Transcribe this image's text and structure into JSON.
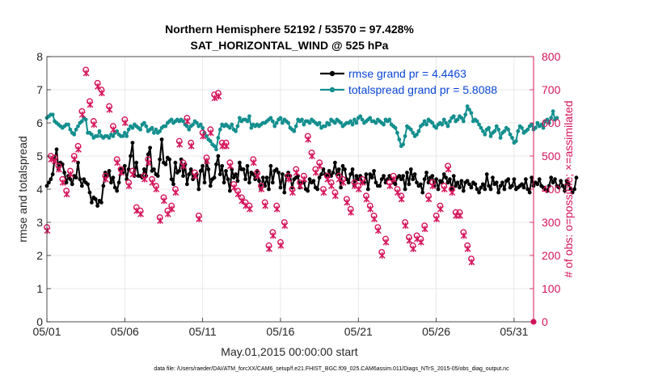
{
  "chart_data": {
    "type": "line",
    "title": "Northern Hemisphere 52192 / 53570 = 97.428%",
    "subtitle": "SAT_HORIZONTAL_WIND @ 525 hPa",
    "xlabel": "May.01,2015 00:00:00 start",
    "ylabel": "rmse and totalspread",
    "y2label": "# of obs: o=possible; ×=assimilated",
    "footnote": "data file: /Users/raeder/DAI/ATM_forcXX/CAM6_setup/f.e21.FHIST_BGC.f09_025.CAM6assim.011/Diags_NTrS_2015-05/obs_diag_output.nc",
    "xlim": [
      0,
      31.25
    ],
    "ylim": [
      0,
      8
    ],
    "y2lim": [
      0,
      800
    ],
    "xticks": [
      0,
      5,
      10,
      15,
      20,
      25,
      30
    ],
    "xticklabels": [
      "05/01",
      "05/06",
      "05/11",
      "05/16",
      "05/21",
      "05/26",
      "05/31"
    ],
    "yticks": [
      0,
      1,
      2,
      3,
      4,
      5,
      6,
      7,
      8
    ],
    "yticklabels": [
      "0",
      "1",
      "2",
      "3",
      "4",
      "5",
      "6",
      "7",
      "8"
    ],
    "y2ticks": [
      0,
      100,
      200,
      300,
      400,
      500,
      600,
      700,
      800
    ],
    "y2ticklabels": [
      "0",
      "100",
      "200",
      "300",
      "400",
      "500",
      "600",
      "700",
      "800"
    ],
    "grid": true,
    "legend_position": "top-right",
    "colors": {
      "rmse": "#000000",
      "spread": "#138f8e",
      "obs": "#d4145a",
      "legend_text": "#0c47d6"
    },
    "series": [
      {
        "name": "rmse grand pr = 4.4463",
        "color": "#000000",
        "values": [
          4.1,
          4.2,
          4.3,
          4.45,
          4.9,
          5.2,
          4.6,
          4.8,
          4.75,
          4.5,
          4.2,
          4.4,
          4.3,
          4.15,
          4.4,
          4.35,
          4.8,
          4.3,
          4.1,
          4.3,
          4.2,
          4.15,
          3.9,
          3.6,
          3.75,
          3.7,
          3.5,
          3.65,
          3.6,
          4.1,
          4.5,
          4.4,
          4.55,
          4.2,
          4.35,
          4.05,
          3.95,
          4.2,
          4.6,
          4.5,
          4.7,
          4.3,
          4.6,
          5.0,
          5.4,
          4.4,
          4.8,
          4.4,
          4.4,
          4.35,
          4.6,
          4.4,
          5.05,
          5.25,
          4.55,
          4.6,
          4.45,
          4.4,
          4.9,
          5.5,
          4.8,
          4.75,
          4.95,
          4.9,
          4.3,
          4.15,
          4.8,
          4.5,
          4.55,
          4.9,
          4.4,
          4.75,
          4.15,
          4.45,
          4.6,
          4.3,
          4.4,
          4.45,
          4.0,
          4.55,
          4.7,
          4.2,
          4.85,
          4.6,
          4.1,
          4.3,
          4.35,
          4.75,
          5.0,
          4.45,
          4.7,
          4.2,
          4.55,
          4.3,
          3.95,
          4.6,
          4.35,
          4.45,
          4.25,
          4.8,
          4.6,
          4.6,
          4.3,
          4.7,
          4.2,
          4.5,
          4.45,
          4.3,
          4.55,
          4.25,
          4.0,
          4.35,
          4.1,
          4.35,
          4.0,
          4.7,
          4.2,
          4.55,
          4.6,
          4.5,
          4.05,
          4.45,
          3.9,
          4.4,
          4.5,
          4.4,
          4.05,
          4.3,
          4.35,
          4.4,
          4.05,
          4.2,
          4.2,
          4.0,
          3.95,
          4.3,
          4.2,
          4.25,
          4.05,
          4.0,
          4.35,
          4.45,
          4.6,
          4.45,
          4.4,
          4.55,
          4.4,
          4.5,
          4.8,
          4.45,
          4.6,
          4.05,
          4.7,
          4.6,
          4.3,
          4.2,
          4.45,
          4.6,
          4.1,
          4.4,
          4.3,
          4.4,
          4.2,
          4.2,
          4.45,
          4.0,
          4.45,
          4.35,
          4.55,
          4.2,
          4.1,
          4.1,
          4.3,
          4.4,
          4.2,
          4.3,
          4.4,
          4.3,
          4.2,
          4.15,
          4.35,
          4.4,
          4.3,
          4.4,
          4.0,
          4.5,
          4.15,
          4.6,
          4.3,
          4.45,
          4.2,
          4.1,
          4.15,
          3.9,
          4.3,
          4.5,
          4.2,
          4.35,
          4.4,
          4.1,
          4.3,
          4.0,
          4.25,
          4.2,
          4.45,
          4.35,
          4.2,
          4.3,
          4.0,
          4.4,
          4.1,
          4.2,
          4.05,
          4.25,
          3.95,
          4.2,
          4.25,
          4.15,
          4.05,
          4.2,
          4.15,
          4.0,
          3.9,
          4.05,
          4.15,
          4.0,
          4.45,
          4.1,
          4.0,
          4.35,
          4.15,
          4.2,
          3.9,
          4.1,
          4.2,
          4.0,
          4.25,
          4.3,
          4.05,
          4.1,
          4.3,
          4.0,
          4.05,
          4.1,
          4.15,
          4.05,
          4.3,
          4.0,
          3.9,
          4.35,
          4.1,
          4.2,
          4.15,
          4.3,
          4.1,
          4.05,
          4.0,
          3.95,
          4.1,
          4.35,
          4.2,
          4.3,
          4.1,
          4.05,
          4.25,
          4.1,
          3.95,
          4.25,
          4.15,
          4.0,
          3.9,
          4.0,
          4.35
        ]
      },
      {
        "name": "totalspread grand pr = 5.8088",
        "color": "#138f8e",
        "values": [
          6.15,
          6.2,
          6.25,
          6.25,
          6.05,
          6.0,
          5.95,
          5.9,
          5.85,
          5.9,
          5.95,
          5.95,
          5.8,
          5.7,
          5.65,
          5.8,
          5.9,
          6.0,
          6.05,
          6.15,
          6.1,
          5.7,
          5.7,
          5.65,
          5.55,
          5.6,
          5.6,
          5.75,
          5.6,
          5.55,
          5.6,
          5.6,
          5.55,
          5.65,
          5.6,
          5.7,
          5.75,
          5.65,
          5.6,
          5.6,
          5.7,
          5.6,
          5.8,
          5.9,
          5.85,
          5.95,
          5.9,
          5.85,
          5.8,
          5.95,
          6.0,
          5.9,
          5.75,
          5.8,
          5.85,
          5.7,
          5.8,
          5.7,
          5.75,
          5.85,
          5.9,
          5.9,
          6.0,
          6.05,
          6.1,
          6.0,
          6.05,
          6.1,
          6.05,
          6.1,
          6.05,
          5.95,
          5.9,
          5.8,
          5.9,
          5.95,
          6.05,
          6.0,
          5.9,
          5.95,
          5.85,
          5.7,
          5.6,
          5.5,
          5.45,
          5.35,
          5.3,
          5.2,
          5.55,
          5.8,
          5.95,
          5.9,
          5.95,
          5.9,
          5.85,
          5.95,
          5.8,
          5.75,
          5.9,
          6.15,
          6.05,
          6.1,
          6.1,
          6.05,
          6.2,
          5.85,
          5.95,
          5.9,
          5.95,
          5.9,
          5.95,
          6.0,
          6.0,
          6.05,
          6.1,
          6.15,
          6.05,
          5.9,
          6.0,
          6.1,
          6.15,
          6.0,
          6.1,
          6.05,
          6.0,
          5.85,
          5.8,
          5.75,
          5.9,
          6.1,
          6.05,
          6.1,
          5.95,
          6.05,
          6.05,
          6.0,
          6.1,
          6.05,
          6.0,
          5.95,
          6.0,
          5.85,
          5.9,
          5.9,
          6.0,
          5.95,
          6.1,
          6.05,
          6.0,
          6.1,
          6.05,
          6.0,
          5.9,
          5.95,
          6.0,
          6.0,
          6.05,
          5.95,
          6.1,
          6.0,
          6.15,
          6.2,
          6.1,
          6.0,
          6.05,
          6.1,
          6.15,
          6.05,
          6.05,
          6.0,
          6.1,
          6.05,
          6.0,
          5.95,
          6.1,
          6.05,
          6.1,
          5.95,
          5.9,
          5.85,
          5.7,
          5.5,
          5.3,
          5.35,
          5.6,
          5.9,
          5.85,
          5.8,
          5.7,
          5.6,
          5.65,
          5.75,
          5.9,
          5.95,
          6.05,
          5.95,
          6.1,
          6.05,
          6.0,
          5.9,
          5.85,
          5.95,
          6.0,
          5.95,
          6.1,
          6.0,
          5.9,
          6.05,
          6.15,
          6.2,
          6.05,
          6.1,
          6.2,
          6.15,
          6.05,
          6.25,
          6.5,
          6.4,
          6.3,
          6.05,
          6.1,
          6.05,
          5.95,
          5.85,
          5.75,
          5.65,
          5.8,
          5.85,
          5.6,
          5.7,
          5.75,
          5.9,
          5.8,
          5.55,
          5.7,
          5.75,
          5.85,
          5.8,
          5.65,
          5.55,
          5.4,
          5.45,
          5.75,
          5.9,
          5.85,
          5.7,
          5.75,
          5.8,
          5.9,
          5.95,
          5.8,
          5.85,
          6.0,
          5.9,
          5.95,
          5.85,
          6.05,
          6.1,
          6.0,
          6.15,
          6.35,
          6.1,
          6.15
        ]
      },
      {
        "name": "# of obs possible",
        "axis": "right",
        "color": "#d4145a",
        "values": [
          285,
          340,
          500,
          520,
          495,
          510,
          470,
          440,
          430,
          310,
          395,
          385,
          455,
          530,
          500,
          550,
          530,
          600,
          635,
          670,
          760,
          640,
          665,
          550,
          605,
          715,
          720,
          710,
          700,
          575,
          440,
          550,
          650,
          615,
          590,
          480,
          490,
          510,
          460,
          475,
          610,
          480,
          420,
          500,
          455,
          405,
          345,
          380,
          335,
          470,
          440,
          445,
          490,
          400,
          430,
          460,
          410,
          380,
          315,
          280,
          375,
          355,
          335,
          340,
          350,
          380,
          400,
          490,
          545,
          575,
          480,
          625,
          615,
          630,
          540,
          410,
          450,
          410,
          320,
          510,
          570,
          580,
          495,
          530,
          580,
          595,
          685,
          680,
          690,
          630,
          540,
          520,
          540,
          550,
          480,
          430,
          415,
          430,
          395,
          380,
          375,
          350,
          360,
          340,
          350,
          360,
          490,
          400,
          450,
          420,
          410,
          400,
          360,
          340,
          230,
          260,
          270,
          345,
          350,
          320,
          240,
          250,
          300,
          430,
          440,
          420,
          400,
          430,
          460,
          440,
          420,
          425,
          440,
          600,
          560,
          580,
          510,
          520,
          460,
          450,
          480,
          440,
          400,
          420,
          440,
          390,
          420,
          415,
          390,
          420,
          440,
          420,
          430,
          390,
          370,
          360,
          340,
          380,
          420,
          400,
          410,
          440,
          430,
          420,
          380,
          400,
          350,
          345,
          320,
          310,
          285,
          300,
          210,
          205,
          250,
          280,
          420,
          450,
          440,
          420,
          400,
          410,
          380,
          350,
          300,
          270,
          255,
          250,
          230,
          210,
          260,
          230,
          250,
          270,
          290,
          350,
          380,
          400,
          420,
          380,
          320,
          300,
          350,
          390,
          410,
          430,
          470,
          460,
          400,
          370,
          330,
          310,
          330,
          290,
          270,
          250,
          230,
          200,
          190,
          210
        ]
      },
      {
        "name": "# of obs assimilated",
        "axis": "right",
        "color": "#d4145a",
        "values": [
          275,
          330,
          490,
          510,
          485,
          500,
          460,
          430,
          420,
          300,
          385,
          375,
          445,
          520,
          490,
          540,
          520,
          590,
          625,
          660,
          750,
          630,
          655,
          540,
          595,
          705,
          710,
          700,
          690,
          565,
          430,
          540,
          640,
          605,
          580,
          470,
          480,
          500,
          450,
          465,
          600,
          470,
          410,
          490,
          445,
          395,
          335,
          370,
          325,
          460,
          430,
          435,
          480,
          390,
          420,
          450,
          400,
          370,
          305,
          270,
          365,
          345,
          325,
          330,
          340,
          370,
          390,
          480,
          535,
          565,
          470,
          615,
          605,
          620,
          530,
          400,
          440,
          400,
          310,
          500,
          560,
          570,
          485,
          520,
          570,
          585,
          675,
          670,
          680,
          620,
          530,
          510,
          530,
          540,
          470,
          420,
          405,
          420,
          385,
          370,
          365,
          340,
          350,
          330,
          340,
          350,
          480,
          390,
          440,
          410,
          400,
          390,
          350,
          330,
          220,
          250,
          260,
          335,
          340,
          310,
          230,
          240,
          290,
          420,
          430,
          410,
          390,
          420,
          450,
          430,
          410,
          415,
          430,
          590,
          550,
          570,
          500,
          510,
          450,
          440,
          470,
          430,
          390,
          410,
          430,
          380,
          410,
          405,
          380,
          410,
          430,
          410,
          420,
          380,
          360,
          350,
          330,
          370,
          410,
          390,
          400,
          430,
          420,
          410,
          370,
          390,
          340,
          335,
          310,
          300,
          275,
          290,
          200,
          195,
          240,
          270,
          410,
          440,
          430,
          410,
          390,
          400,
          370,
          340,
          290,
          260,
          245,
          240,
          220,
          200,
          250,
          220,
          240,
          260,
          280,
          340,
          370,
          390,
          410,
          370,
          310,
          290,
          340,
          380,
          400,
          420,
          460,
          450,
          390,
          360,
          320,
          300,
          320,
          280,
          260,
          240,
          220,
          190,
          180,
          200
        ]
      }
    ]
  }
}
